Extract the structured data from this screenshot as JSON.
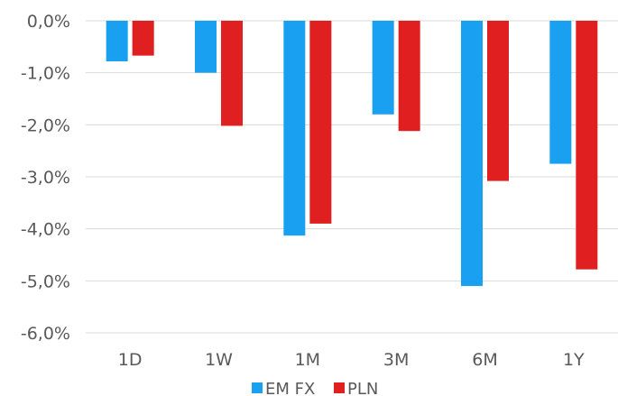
{
  "chart_data": {
    "type": "bar",
    "categories": [
      "1D",
      "1W",
      "1M",
      "3M",
      "6M",
      "1Y"
    ],
    "series": [
      {
        "name": "EM FX",
        "color": "#1aa0f0",
        "values": [
          -0.78,
          -1.0,
          -4.13,
          -1.8,
          -5.1,
          -2.75
        ]
      },
      {
        "name": "PLN",
        "color": "#e02020",
        "values": [
          -0.67,
          -2.02,
          -3.9,
          -2.12,
          -3.08,
          -4.78
        ]
      }
    ],
    "ylim": [
      -6,
      0
    ],
    "yticks": [
      0,
      -1,
      -2,
      -3,
      -4,
      -5,
      -6
    ],
    "ytick_labels": [
      "0,0%",
      "-1,0%",
      "-2,0%",
      "-3,0%",
      "-4,0%",
      "-5,0%",
      "-6,0%"
    ],
    "grid": true,
    "legend_position": "bottom",
    "title": "",
    "xlabel": "",
    "ylabel": ""
  }
}
